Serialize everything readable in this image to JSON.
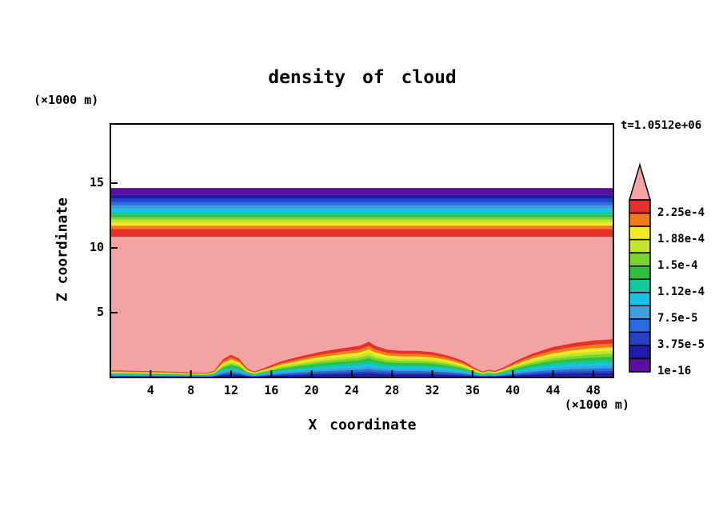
{
  "title": "density of cloud",
  "time_label": "t=1.0512e+06",
  "axes": {
    "x_label": "X coordinate",
    "x_unit": "(×1000 m)",
    "y_label": "Z coordinate",
    "y_unit": "(×1000 m)",
    "x_ticks": [
      4,
      8,
      12,
      16,
      20,
      24,
      28,
      32,
      36,
      40,
      44,
      48
    ],
    "y_ticks": [
      5,
      10,
      15
    ],
    "x_range": [
      0,
      50
    ],
    "z_range": [
      0,
      19.6
    ]
  },
  "chart_data": {
    "type": "heatmap",
    "subtype": "filled-contour",
    "title": "density of cloud",
    "xlabel": "X coordinate (×1000 m)",
    "ylabel": "Z coordinate (×1000 m)",
    "time_annotation": "t=1.0512e+06",
    "xlim": [
      0,
      50
    ],
    "zlim": [
      0,
      19.6
    ],
    "grid": false,
    "legend_position": "right-colorbar",
    "colorbar": {
      "labels": [
        "2.25e-4",
        "1.88e-4",
        "1.5e-4",
        "1.12e-4",
        "7.5e-5",
        "3.75e-5",
        "1e-16"
      ],
      "label_boundary_index": [
        1,
        3,
        5,
        7,
        9,
        11,
        13
      ],
      "segment_colors": [
        "#e5302b",
        "#f47a20",
        "#f4ea24",
        "#c0e52e",
        "#7cd430",
        "#2cc13c",
        "#14c8a0",
        "#18c3e8",
        "#3f9fe0",
        "#2a6ce0",
        "#2342c8",
        "#1c1ca8",
        "#5a0fa0"
      ],
      "over_arrow_color": "#f4a3a3"
    },
    "interior_color": "#f4a3a3",
    "top_band_boundaries_z": [
      10.85,
      11.45,
      11.72,
      11.95,
      12.18,
      12.38,
      12.58,
      12.78,
      13.02,
      13.28,
      13.55,
      13.8,
      14.08,
      14.62
    ],
    "cloud_profile": {
      "x": [
        0,
        3,
        6,
        8,
        9.5,
        10.3,
        11.2,
        12,
        12.8,
        13.6,
        14.3,
        15.5,
        17,
        19,
        21,
        23,
        24.8,
        25.7,
        26.3,
        27.5,
        29,
        30.5,
        32,
        33.5,
        35,
        36.2,
        37,
        37.6,
        38.2,
        39,
        40.5,
        42,
        44,
        46,
        48,
        50
      ],
      "h": [
        0.55,
        0.5,
        0.45,
        0.38,
        0.34,
        0.5,
        1.4,
        1.75,
        1.45,
        0.7,
        0.45,
        0.8,
        1.25,
        1.65,
        2.0,
        2.25,
        2.45,
        2.75,
        2.45,
        2.15,
        2.05,
        2.05,
        1.95,
        1.7,
        1.3,
        0.75,
        0.45,
        0.6,
        0.5,
        0.75,
        1.35,
        1.85,
        2.35,
        2.65,
        2.85,
        2.95
      ]
    },
    "cloud_band_ratios": [
      1.0,
      0.89,
      0.79,
      0.7,
      0.62,
      0.54,
      0.46,
      0.385,
      0.31,
      0.24,
      0.17,
      0.11,
      0.055
    ]
  }
}
